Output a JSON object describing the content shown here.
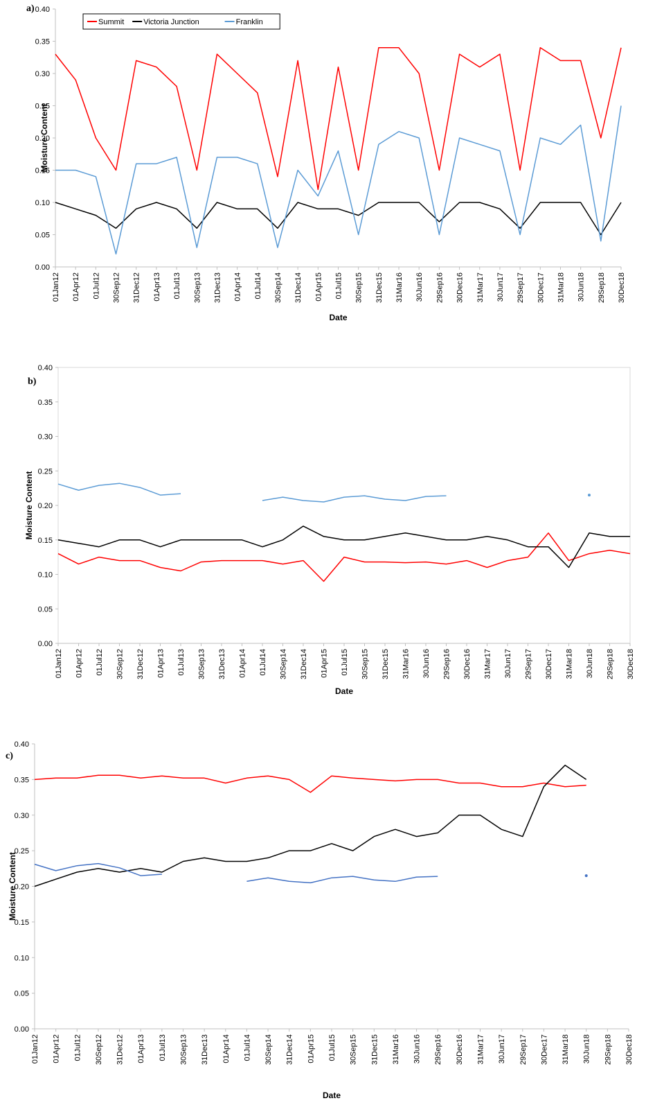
{
  "chart_data": [
    {
      "type": "line",
      "panel_label": "a)",
      "xlabel": "Date",
      "ylabel": "Moisture Content",
      "categories": [
        "01Jan12",
        "01Apr12",
        "01Jul12",
        "30Sep12",
        "31Dec12",
        "01Apr13",
        "01Jul13",
        "30Sep13",
        "31Dec13",
        "01Apr14",
        "01Jul14",
        "30Sep14",
        "31Dec14",
        "01Apr15",
        "01Jul15",
        "30Sep15",
        "31Dec15",
        "31Mar16",
        "30Jun16",
        "29Sep16",
        "30Dec16",
        "31Mar17",
        "30Jun17",
        "29Sep17",
        "30Dec17",
        "31Mar18",
        "30Jun18",
        "29Sep18",
        "30Dec18"
      ],
      "ylim": [
        0,
        0.4
      ],
      "yticks": [
        {
          "value": 0,
          "label": "0.00"
        },
        {
          "value": 0.05,
          "label": "0.05"
        },
        {
          "value": 0.1,
          "label": "0.10"
        },
        {
          "value": 0.15,
          "label": "0.15"
        },
        {
          "value": 0.2,
          "label": "0.20"
        },
        {
          "value": 0.25,
          "label": "0.25"
        },
        {
          "value": 0.3,
          "label": "0.30"
        },
        {
          "value": 0.35,
          "label": "0.35"
        },
        {
          "value": 0.4,
          "label": "0.40"
        }
      ],
      "legend": "top-left",
      "frame": false,
      "series": [
        {
          "name": "Summit",
          "color": "#ff0000",
          "values": [
            0.33,
            0.29,
            0.2,
            0.15,
            0.32,
            0.31,
            0.28,
            0.15,
            0.33,
            0.3,
            0.27,
            0.14,
            0.32,
            0.12,
            0.31,
            0.15,
            0.34,
            0.34,
            0.3,
            0.15,
            0.33,
            0.31,
            0.33,
            0.15,
            0.34,
            0.32,
            0.32,
            0.2,
            0.34
          ]
        },
        {
          "name": "Victoria Junction",
          "color": "#000000",
          "values": [
            0.1,
            0.09,
            0.08,
            0.06,
            0.09,
            0.1,
            0.09,
            0.06,
            0.1,
            0.09,
            0.09,
            0.06,
            0.1,
            0.09,
            0.09,
            0.08,
            0.1,
            0.1,
            0.1,
            0.07,
            0.1,
            0.1,
            0.09,
            0.06,
            0.1,
            0.1,
            0.1,
            0.05,
            0.1
          ]
        },
        {
          "name": "Franklin",
          "color": "#5b9bd5",
          "values": [
            0.15,
            0.15,
            0.14,
            0.02,
            0.16,
            0.16,
            0.17,
            0.03,
            0.17,
            0.17,
            0.16,
            0.03,
            0.15,
            0.11,
            0.18,
            0.05,
            0.19,
            0.21,
            0.2,
            0.05,
            0.2,
            0.19,
            0.18,
            0.05,
            0.2,
            0.19,
            0.22,
            0.04,
            0.25
          ]
        }
      ]
    },
    {
      "type": "line",
      "panel_label": "b)",
      "xlabel": "Date",
      "ylabel": "Moisture Content",
      "categories": [
        "01Jan12",
        "01Apr12",
        "01Jul12",
        "30Sep12",
        "31Dec12",
        "01Apr13",
        "01Jul13",
        "30Sep13",
        "31Dec13",
        "01Apr14",
        "01Jul14",
        "30Sep14",
        "31Dec14",
        "01Apr15",
        "01Jul15",
        "30Sep15",
        "31Dec15",
        "31Mar16",
        "30Jun16",
        "29Sep16",
        "30Dec16",
        "31Mar17",
        "30Jun17",
        "29Sep17",
        "30Dec17",
        "31Mar18",
        "30Jun18",
        "29Sep18",
        "30Dec18"
      ],
      "ylim": [
        0,
        0.4
      ],
      "yticks": [
        {
          "value": 0,
          "label": "0.00"
        },
        {
          "value": 0.05,
          "label": "0.05"
        },
        {
          "value": 0.1,
          "label": "0.10"
        },
        {
          "value": 0.15,
          "label": "0.15"
        },
        {
          "value": 0.2,
          "label": "0.20"
        },
        {
          "value": 0.25,
          "label": "0.25"
        },
        {
          "value": 0.3,
          "label": "0.30"
        },
        {
          "value": 0.35,
          "label": "0.35"
        },
        {
          "value": 0.4,
          "label": "0.40"
        }
      ],
      "frame": true,
      "series": [
        {
          "color": "#ff0000",
          "values": [
            0.13,
            0.115,
            0.125,
            0.12,
            0.12,
            0.11,
            0.105,
            0.118,
            0.12,
            0.12,
            0.12,
            0.115,
            0.12,
            0.09,
            0.125,
            0.118,
            0.118,
            0.117,
            0.118,
            0.115,
            0.12,
            0.11,
            0.12,
            0.125,
            0.16,
            0.12,
            0.13,
            0.135,
            0.13
          ]
        },
        {
          "color": "#000000",
          "values": [
            0.15,
            0.145,
            0.14,
            0.15,
            0.15,
            0.14,
            0.15,
            0.15,
            0.15,
            0.15,
            0.14,
            0.15,
            0.17,
            0.155,
            0.15,
            0.15,
            0.155,
            0.16,
            0.155,
            0.15,
            0.15,
            0.155,
            0.15,
            0.14,
            0.14,
            0.11,
            0.16,
            0.155,
            0.155
          ]
        },
        {
          "color": "#5b9bd5",
          "values": [
            0.231,
            0.222,
            0.229,
            0.232,
            0.226,
            0.215,
            0.217,
            null,
            null,
            null,
            0.207,
            0.212,
            0.207,
            0.205,
            0.212,
            0.214,
            0.209,
            0.207,
            0.213,
            0.214,
            null,
            null,
            null,
            null,
            null,
            null,
            0.215,
            null,
            null
          ]
        }
      ]
    },
    {
      "type": "line",
      "panel_label": "c)",
      "xlabel": "Date",
      "ylabel": "Moisture Content",
      "categories": [
        "01Jan12",
        "01Apr12",
        "01Jul12",
        "30Sep12",
        "31Dec12",
        "01Apr13",
        "01Jul13",
        "30Sep13",
        "31Dec13",
        "01Apr14",
        "01Jul14",
        "30Sep14",
        "31Dec14",
        "01Apr15",
        "01Jul15",
        "30Sep15",
        "31Dec15",
        "31Mar16",
        "30Jun16",
        "29Sep16",
        "30Dec16",
        "31Mar17",
        "30Jun17",
        "29Sep17",
        "30Dec17",
        "31Mar18",
        "30Jun18",
        "29Sep18",
        "30Dec18"
      ],
      "ylim": [
        0,
        0.4
      ],
      "yticks": [
        {
          "value": 0,
          "label": "0.00"
        },
        {
          "value": 0.05,
          "label": "0.05"
        },
        {
          "value": 0.1,
          "label": "0.10"
        },
        {
          "value": 0.15,
          "label": "0.15"
        },
        {
          "value": 0.2,
          "label": "0.20"
        },
        {
          "value": 0.25,
          "label": "0.25"
        },
        {
          "value": 0.3,
          "label": "0.30"
        },
        {
          "value": 0.35,
          "label": "0.35"
        },
        {
          "value": 0.4,
          "label": "0.40"
        }
      ],
      "frame": false,
      "series": [
        {
          "color": "#ff0000",
          "values": [
            0.35,
            0.352,
            0.352,
            0.356,
            0.356,
            0.352,
            0.355,
            0.352,
            0.352,
            0.345,
            0.352,
            0.355,
            0.35,
            0.332,
            0.355,
            0.352,
            0.35,
            0.348,
            0.35,
            0.35,
            0.345,
            0.345,
            0.34,
            0.34,
            0.345,
            0.34,
            0.342,
            null,
            null
          ]
        },
        {
          "color": "#000000",
          "values": [
            0.2,
            0.21,
            0.22,
            0.225,
            0.22,
            0.225,
            0.22,
            0.235,
            0.24,
            0.235,
            0.235,
            0.24,
            0.25,
            0.25,
            0.26,
            0.25,
            0.27,
            0.28,
            0.27,
            0.275,
            0.3,
            0.3,
            0.28,
            0.27,
            0.34,
            0.37,
            0.35,
            null,
            null
          ]
        },
        {
          "color": "#4472c4",
          "values": [
            0.231,
            0.222,
            0.229,
            0.232,
            0.226,
            0.215,
            0.217,
            null,
            null,
            null,
            0.207,
            0.212,
            0.207,
            0.205,
            0.212,
            0.214,
            0.209,
            0.207,
            0.213,
            0.214,
            null,
            null,
            null,
            null,
            null,
            null,
            0.215,
            null,
            null
          ]
        }
      ]
    }
  ]
}
